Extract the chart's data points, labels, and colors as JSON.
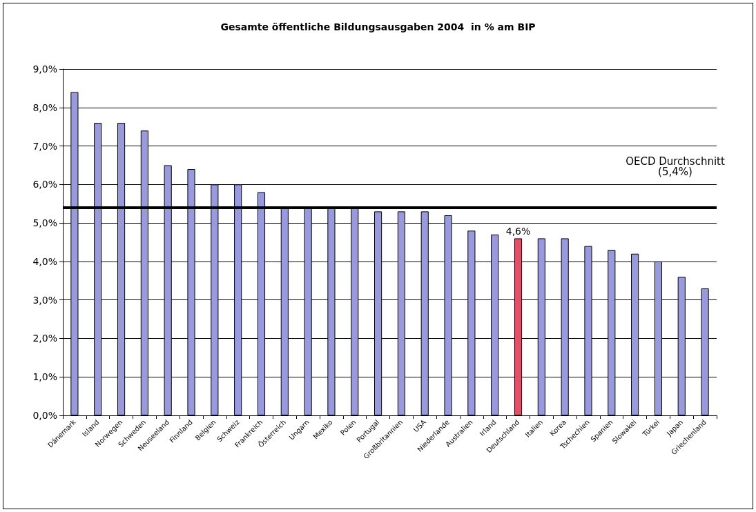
{
  "chart_data": {
    "type": "bar",
    "title": "Gesamte öffentliche Bildungsausgaben 2004  in % am BIP",
    "categories": [
      "Dänemark",
      "Island",
      "Norwegen",
      "Schweden",
      "Neuseeland",
      "Finnland",
      "Belgien",
      "Schweiz",
      "Frankreich",
      "Österreich",
      "Ungarn",
      "Mexiko",
      "Polen",
      "Portugal",
      "Großbritannien",
      "USA",
      "Niederlande",
      "Australien",
      "Irland",
      "Deutschland",
      "Italien",
      "Korea",
      "Tschechien",
      "Spanien",
      "Slowakei",
      "Türkei",
      "Japan",
      "Griechenland"
    ],
    "values": [
      8.4,
      7.6,
      7.6,
      7.4,
      6.5,
      6.4,
      6.0,
      6.0,
      5.8,
      5.4,
      5.4,
      5.4,
      5.4,
      5.3,
      5.3,
      5.3,
      5.2,
      4.8,
      4.7,
      4.6,
      4.6,
      4.6,
      4.4,
      4.3,
      4.2,
      4.0,
      3.6,
      3.3
    ],
    "colors": [
      "#9999dd",
      "#9999dd",
      "#9999dd",
      "#9999dd",
      "#9999dd",
      "#9999dd",
      "#9999dd",
      "#9999dd",
      "#9999dd",
      "#9999dd",
      "#9999dd",
      "#9999dd",
      "#9999dd",
      "#9999dd",
      "#9999dd",
      "#9999dd",
      "#9999dd",
      "#9999dd",
      "#9999dd",
      "#e0506a",
      "#9999dd",
      "#9999dd",
      "#9999dd",
      "#9999dd",
      "#9999dd",
      "#9999dd",
      "#9999dd",
      "#9999dd"
    ],
    "ylim": [
      0,
      9
    ],
    "yticks": [
      {
        "value": 0,
        "label": "0,0%"
      },
      {
        "value": 1,
        "label": "1,0%"
      },
      {
        "value": 2,
        "label": "2,0%"
      },
      {
        "value": 3,
        "label": "3,0%"
      },
      {
        "value": 4,
        "label": "4,0%"
      },
      {
        "value": 5,
        "label": "5,0%"
      },
      {
        "value": 6,
        "label": "6,0%"
      },
      {
        "value": 7,
        "label": "7,0%"
      },
      {
        "value": 8,
        "label": "8,0%"
      },
      {
        "value": 9,
        "label": "9,0%"
      }
    ],
    "ref_lines": [
      {
        "axis": "y",
        "value": 5.4,
        "label": "OECD Durchschnitt\n(5,4%)",
        "color": "#000000"
      }
    ],
    "annotations": [
      {
        "text": "4,6%",
        "x": "Deutschland",
        "y": 4.6
      }
    ],
    "grid": "y"
  }
}
